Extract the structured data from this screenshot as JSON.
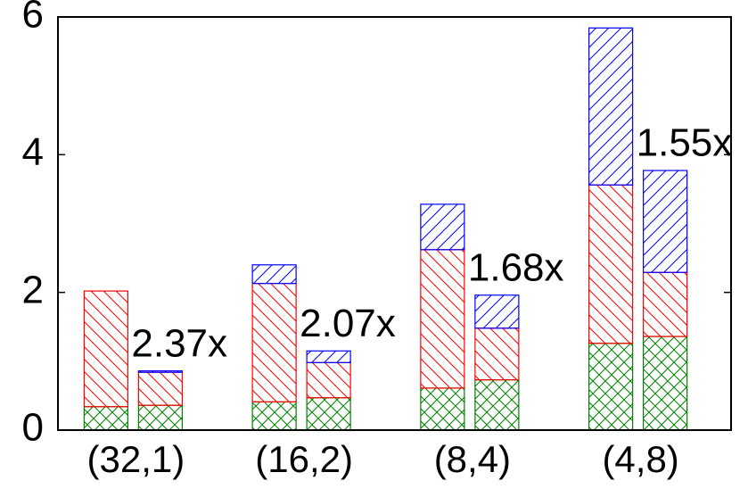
{
  "chart_data": {
    "type": "stacked-bar",
    "categories": [
      "(32,1)",
      "(16,2)",
      "(8,4)",
      "(4,8)"
    ],
    "stacks": [
      {
        "series": [
          {
            "color": "#008000",
            "hatch": "cross",
            "values": [
              0.34,
              0.41,
              0.61,
              1.26
            ]
          },
          {
            "color": "#ff0000",
            "hatch": "backslash",
            "values": [
              1.68,
              1.72,
              2.01,
              2.3
            ]
          },
          {
            "color": "#0000ff",
            "hatch": "slash",
            "values": [
              0,
              0.27,
              0.66,
              2.28
            ]
          }
        ]
      },
      {
        "series": [
          {
            "color": "#008000",
            "hatch": "cross",
            "values": [
              0.36,
              0.47,
              0.73,
              1.36
            ]
          },
          {
            "color": "#ff0000",
            "hatch": "backslash",
            "values": [
              0.48,
              0.51,
              0.75,
              0.93
            ]
          },
          {
            "color": "#0000ff",
            "hatch": "slash",
            "values": [
              0.02,
              0.17,
              0.48,
              1.48
            ]
          }
        ]
      }
    ],
    "annotations": [
      "2.37x",
      "2.07x",
      "1.68x",
      "1.55x"
    ],
    "ylim": [
      0,
      6
    ],
    "yticks": [
      0,
      2,
      4,
      6
    ]
  }
}
